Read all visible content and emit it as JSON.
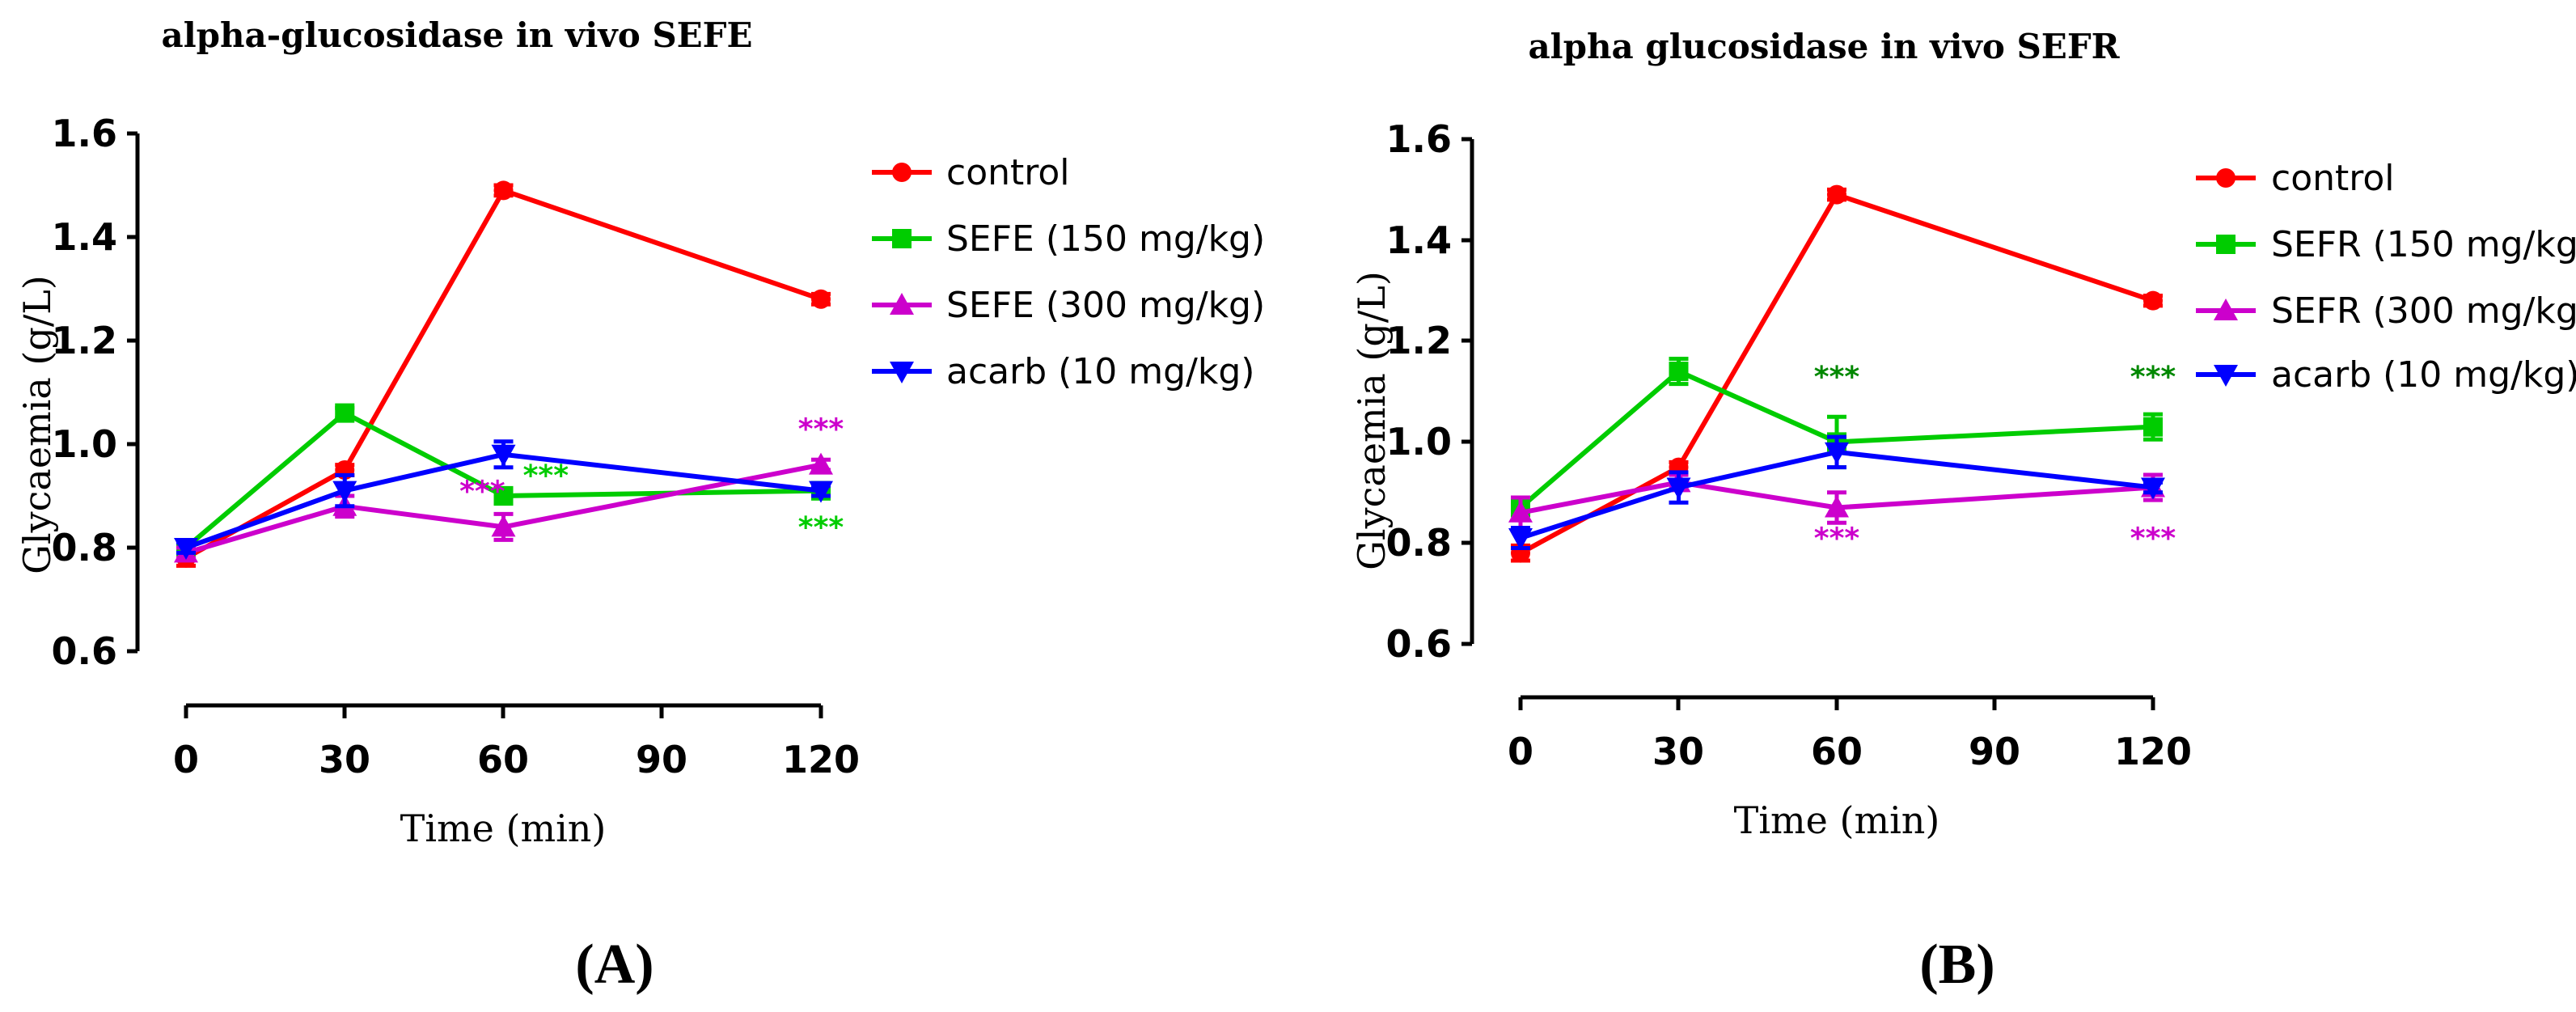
{
  "figure": {
    "panels": [
      "(A)",
      "(B)"
    ]
  },
  "chart_data": [
    {
      "type": "line",
      "panel_label": "(A)",
      "title": "alpha-glucosidase in vivo SEFE",
      "xlabel": "Time (min)",
      "ylabel": "Glycaemia (g/L)",
      "xlim": [
        0,
        120
      ],
      "ylim": [
        0.6,
        1.6
      ],
      "x_ticks": [
        0,
        30,
        60,
        90,
        120
      ],
      "x_tick_labels": [
        "0",
        "30",
        "60",
        "90",
        "120"
      ],
      "y_ticks": [
        0.6,
        0.8,
        1.0,
        1.2,
        1.4,
        1.6
      ],
      "y_tick_labels": [
        "0.6",
        "0.8",
        "1.0",
        "1.2",
        "1.4",
        "1.6"
      ],
      "legend_position": "right",
      "x": [
        0,
        30,
        60,
        120
      ],
      "series": [
        {
          "name": "control",
          "color": "#ff0000",
          "marker": "circle",
          "values": [
            0.78,
            0.95,
            1.49,
            1.28
          ],
          "errors": [
            0.015,
            0.01,
            0.01,
            0.01
          ]
        },
        {
          "name": "SEFE (150 mg/kg)",
          "color": "#00cc00",
          "marker": "square",
          "values": [
            0.8,
            1.06,
            0.9,
            0.91
          ],
          "errors": [
            0.01,
            0.01,
            0.015,
            0.015
          ]
        },
        {
          "name": "SEFE (300 mg/kg)",
          "color": "#cc00cc",
          "marker": "triangle-up",
          "values": [
            0.79,
            0.88,
            0.84,
            0.96
          ],
          "errors": [
            0.01,
            0.02,
            0.025,
            0.01
          ]
        },
        {
          "name": "acarb (10 mg/kg)",
          "color": "#0000ff",
          "marker": "triangle-down",
          "values": [
            0.8,
            0.91,
            0.98,
            0.91
          ],
          "errors": [
            0.01,
            0.03,
            0.025,
            0.01
          ]
        }
      ],
      "annotations": [
        {
          "text": "***",
          "color": "#cc00cc",
          "x": 56,
          "y": 0.89
        },
        {
          "text": "***",
          "color": "#00cc00",
          "x": 68,
          "y": 0.92
        },
        {
          "text": "***",
          "color": "#cc00cc",
          "x": 120,
          "y": 1.01
        },
        {
          "text": "***",
          "color": "#00cc00",
          "x": 120,
          "y": 0.82
        }
      ]
    },
    {
      "type": "line",
      "panel_label": "(B)",
      "title": "alpha glucosidase in vivo SEFR",
      "xlabel": "Time (min)",
      "ylabel": "Glycaemia (g/L)",
      "xlim": [
        0,
        120
      ],
      "ylim": [
        0.6,
        1.6
      ],
      "x_ticks": [
        0,
        30,
        60,
        90,
        120
      ],
      "x_tick_labels": [
        "0",
        "30",
        "60",
        "90",
        "120"
      ],
      "y_ticks": [
        0.6,
        0.8,
        1.0,
        1.2,
        1.4,
        1.6
      ],
      "y_tick_labels": [
        "0.6",
        "0.8",
        "1.0",
        "1.2",
        "1.4",
        "1.6"
      ],
      "legend_position": "right",
      "x": [
        0,
        30,
        60,
        120
      ],
      "series": [
        {
          "name": "control",
          "color": "#ff0000",
          "marker": "circle",
          "values": [
            0.78,
            0.95,
            1.49,
            1.28
          ],
          "errors": [
            0.015,
            0.01,
            0.01,
            0.01
          ]
        },
        {
          "name": "SEFR (150 mg/kg)",
          "color": "#00cc00",
          "marker": "square",
          "values": [
            0.87,
            1.14,
            1.0,
            1.03
          ],
          "errors": [
            0.015,
            0.025,
            0.05,
            0.025
          ]
        },
        {
          "name": "SEFR (300 mg/kg)",
          "color": "#cc00cc",
          "marker": "triangle-up",
          "values": [
            0.86,
            0.92,
            0.87,
            0.91
          ],
          "errors": [
            0.03,
            0.015,
            0.03,
            0.025
          ]
        },
        {
          "name": "acarb (10 mg/kg)",
          "color": "#0000ff",
          "marker": "triangle-down",
          "values": [
            0.81,
            0.91,
            0.98,
            0.91
          ],
          "errors": [
            0.02,
            0.03,
            0.03,
            0.01
          ]
        }
      ],
      "annotations": [
        {
          "text": "***",
          "color": "#008800",
          "x": 60,
          "y": 1.11
        },
        {
          "text": "***",
          "color": "#008800",
          "x": 120,
          "y": 1.11
        },
        {
          "text": "***",
          "color": "#cc00cc",
          "x": 60,
          "y": 0.79
        },
        {
          "text": "***",
          "color": "#cc00cc",
          "x": 120,
          "y": 0.79
        }
      ]
    }
  ]
}
